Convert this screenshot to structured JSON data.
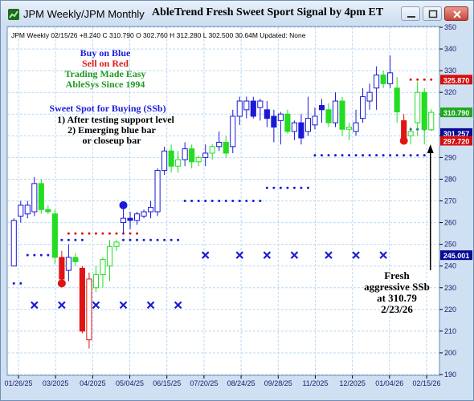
{
  "window": {
    "title": "JPM Weekly/JPM Monthly",
    "chart_title": "AbleTrend Fresh Sweet Sport Signal by 4pm ET",
    "info_line": "JPM  Weekly 02/15/26 +8.240 C 310.790 O 302.760 H 312.280 L 302.500 30.64M Updated: None",
    "icons": [
      "chart-app-icon",
      "minimize-icon",
      "maximize-icon",
      "close-icon"
    ]
  },
  "notes": {
    "buy": "Buy on Blue",
    "sell": "Sell on Red",
    "trading": "Trading Made Easy",
    "since": "AbleSys Since 1994",
    "ssb_title": "Sweet Spot for Buying (SSb)",
    "ssb_1": "1) After testing support level",
    "ssb_2": "2) Emerging blue bar",
    "ssb_3": "or closeup bar",
    "fresh": [
      "Fresh",
      "aggressive SSb",
      "at 310.79",
      "2/23/26"
    ]
  },
  "colors": {
    "blue": "#1a1ad6",
    "red": "#e01414",
    "green": "#22dd22",
    "grid": "#b9d9f2",
    "label_red_bg": "#d40f0f",
    "label_green_bg": "#1ea81e",
    "label_blue_bg": "#0a0a96"
  },
  "chart_data": {
    "type": "candlestick",
    "ylim": [
      190,
      350
    ],
    "y_ticks": [
      190,
      200,
      210,
      220,
      230,
      240,
      250,
      260,
      270,
      280,
      290,
      300,
      310,
      320,
      330,
      340,
      350
    ],
    "x_labels": [
      "01/26/25",
      "03/2025",
      "04/2025",
      "05/04/25",
      "06/15/25",
      "07/20/25",
      "08/24/25",
      "09/28/25",
      "11/2025",
      "12/2025",
      "01/04/26",
      "02/15/26"
    ],
    "grid": true,
    "candles": [
      {
        "o": 240,
        "h": 262,
        "l": 240,
        "c": 261,
        "color": "blue"
      },
      {
        "o": 263,
        "h": 270,
        "l": 260,
        "c": 268,
        "color": "blue"
      },
      {
        "o": 264,
        "h": 270,
        "l": 262,
        "c": 268,
        "color": "blue"
      },
      {
        "o": 265,
        "h": 281,
        "l": 263,
        "c": 278,
        "color": "blue"
      },
      {
        "o": 278,
        "h": 280,
        "l": 264,
        "c": 266,
        "color": "green"
      },
      {
        "o": 266,
        "h": 268,
        "l": 264,
        "c": 265,
        "color": "green"
      },
      {
        "o": 264,
        "h": 266,
        "l": 241,
        "c": 244,
        "color": "green"
      },
      {
        "o": 244,
        "h": 247,
        "l": 232,
        "c": 234,
        "color": "red"
      },
      {
        "o": 238,
        "h": 250,
        "l": 233,
        "c": 244,
        "color": "blue"
      },
      {
        "o": 244,
        "h": 246,
        "l": 240,
        "c": 242,
        "color": "green"
      },
      {
        "o": 239,
        "h": 240,
        "l": 209,
        "c": 210,
        "color": "red"
      },
      {
        "o": 206,
        "h": 237,
        "l": 202,
        "c": 234,
        "color": "red"
      },
      {
        "o": 230,
        "h": 240,
        "l": 228,
        "c": 236,
        "color": "green"
      },
      {
        "o": 236,
        "h": 244,
        "l": 230,
        "c": 243,
        "color": "green"
      },
      {
        "o": 240,
        "h": 252,
        "l": 233,
        "c": 249,
        "color": "green"
      },
      {
        "o": 249,
        "h": 252,
        "l": 247,
        "c": 251,
        "color": "green"
      },
      {
        "o": 260,
        "h": 268,
        "l": 255,
        "c": 262,
        "color": "blue"
      },
      {
        "o": 262,
        "h": 265,
        "l": 257,
        "c": 261,
        "color": "blue"
      },
      {
        "o": 261,
        "h": 265,
        "l": 259,
        "c": 264,
        "color": "blue"
      },
      {
        "o": 263,
        "h": 266,
        "l": 262,
        "c": 265,
        "color": "blue"
      },
      {
        "o": 265,
        "h": 270,
        "l": 262,
        "c": 267,
        "color": "blue"
      },
      {
        "o": 265,
        "h": 285,
        "l": 263,
        "c": 284,
        "color": "blue"
      },
      {
        "o": 284,
        "h": 295,
        "l": 282,
        "c": 293,
        "color": "blue"
      },
      {
        "o": 293,
        "h": 296,
        "l": 283,
        "c": 286,
        "color": "green"
      },
      {
        "o": 286,
        "h": 293,
        "l": 283,
        "c": 289,
        "color": "green"
      },
      {
        "o": 289,
        "h": 297,
        "l": 286,
        "c": 294,
        "color": "blue"
      },
      {
        "o": 294,
        "h": 296,
        "l": 285,
        "c": 288,
        "color": "green"
      },
      {
        "o": 288,
        "h": 291,
        "l": 286,
        "c": 290,
        "color": "green"
      },
      {
        "o": 290,
        "h": 296,
        "l": 286,
        "c": 292,
        "color": "blue"
      },
      {
        "o": 292,
        "h": 296,
        "l": 289,
        "c": 295,
        "color": "green"
      },
      {
        "o": 295,
        "h": 302,
        "l": 293,
        "c": 297,
        "color": "blue"
      },
      {
        "o": 297,
        "h": 300,
        "l": 290,
        "c": 292,
        "color": "green"
      },
      {
        "o": 295,
        "h": 312,
        "l": 292,
        "c": 309,
        "color": "blue"
      },
      {
        "o": 309,
        "h": 318,
        "l": 305,
        "c": 316,
        "color": "blue"
      },
      {
        "o": 312,
        "h": 318,
        "l": 308,
        "c": 316,
        "color": "blue"
      },
      {
        "o": 316,
        "h": 318,
        "l": 308,
        "c": 309,
        "color": "blue"
      },
      {
        "o": 313,
        "h": 317,
        "l": 307,
        "c": 316,
        "color": "blue"
      },
      {
        "o": 312,
        "h": 316,
        "l": 304,
        "c": 308,
        "color": "blue"
      },
      {
        "o": 309,
        "h": 312,
        "l": 297,
        "c": 304,
        "color": "blue"
      },
      {
        "o": 307,
        "h": 311,
        "l": 296,
        "c": 310,
        "color": "blue"
      },
      {
        "o": 310,
        "h": 312,
        "l": 301,
        "c": 302,
        "color": "green"
      },
      {
        "o": 302,
        "h": 307,
        "l": 298,
        "c": 306,
        "color": "blue"
      },
      {
        "o": 306,
        "h": 310,
        "l": 296,
        "c": 299,
        "color": "blue"
      },
      {
        "o": 302,
        "h": 318,
        "l": 300,
        "c": 308,
        "color": "blue"
      },
      {
        "o": 305,
        "h": 313,
        "l": 303,
        "c": 309,
        "color": "blue"
      },
      {
        "o": 314,
        "h": 317,
        "l": 306,
        "c": 312,
        "color": "blue"
      },
      {
        "o": 312,
        "h": 315,
        "l": 304,
        "c": 306,
        "color": "green"
      },
      {
        "o": 306,
        "h": 320,
        "l": 304,
        "c": 316,
        "color": "blue"
      },
      {
        "o": 316,
        "h": 318,
        "l": 300,
        "c": 303,
        "color": "green"
      },
      {
        "o": 303,
        "h": 306,
        "l": 298,
        "c": 304,
        "color": "green"
      },
      {
        "o": 302,
        "h": 312,
        "l": 300,
        "c": 306,
        "color": "blue"
      },
      {
        "o": 308,
        "h": 322,
        "l": 306,
        "c": 318,
        "color": "blue"
      },
      {
        "o": 316,
        "h": 324,
        "l": 312,
        "c": 320,
        "color": "blue"
      },
      {
        "o": 322,
        "h": 332,
        "l": 312,
        "c": 328,
        "color": "blue"
      },
      {
        "o": 328,
        "h": 330,
        "l": 322,
        "c": 324,
        "color": "green"
      },
      {
        "o": 324,
        "h": 337,
        "l": 322,
        "c": 329,
        "color": "blue"
      },
      {
        "o": 322,
        "h": 327,
        "l": 306,
        "c": 311,
        "color": "green"
      },
      {
        "o": 307,
        "h": 310,
        "l": 296,
        "c": 298,
        "color": "red"
      },
      {
        "o": 300,
        "h": 304,
        "l": 296,
        "c": 302,
        "color": "green"
      },
      {
        "o": 306,
        "h": 325,
        "l": 300,
        "c": 320,
        "color": "green"
      },
      {
        "o": 320,
        "h": 322,
        "l": 296,
        "c": 303,
        "color": "green"
      },
      {
        "o": 302.76,
        "h": 312.28,
        "l": 302.5,
        "c": 310.79,
        "color": "green"
      }
    ],
    "big_dots": [
      {
        "i": 7,
        "y": 232,
        "color": "red"
      },
      {
        "i": 16,
        "y": 268,
        "color": "blue"
      },
      {
        "i": 57,
        "y": 297.72,
        "color": "red"
      }
    ],
    "support_dots": [
      {
        "from": 0,
        "to": 1,
        "y": 232
      },
      {
        "from": 2,
        "to": 5,
        "y": 245
      },
      {
        "from": 6,
        "to": 10,
        "y": 252
      },
      {
        "from": 16,
        "to": 24,
        "y": 252
      },
      {
        "from": 25,
        "to": 36,
        "y": 270
      },
      {
        "from": 37,
        "to": 43,
        "y": 276
      },
      {
        "from": 44,
        "to": 60,
        "y": 291
      },
      {
        "from": 58,
        "to": 61,
        "y": 303
      }
    ],
    "resistance_dots": [
      {
        "from": 8,
        "to": 13,
        "y": 255
      },
      {
        "from": 14,
        "to": 18,
        "y": 255
      },
      {
        "from": 58,
        "to": 61,
        "y": 325.87
      }
    ],
    "x_marks_low": [
      {
        "i": 3,
        "y": 222
      },
      {
        "i": 7,
        "y": 222
      },
      {
        "i": 12,
        "y": 222
      },
      {
        "i": 16,
        "y": 222
      },
      {
        "i": 20,
        "y": 222
      },
      {
        "i": 24,
        "y": 222
      }
    ],
    "x_marks_high": [
      {
        "i": 28,
        "y": 245
      },
      {
        "i": 33,
        "y": 245
      },
      {
        "i": 37,
        "y": 245
      },
      {
        "i": 41,
        "y": 245
      },
      {
        "i": 46,
        "y": 245
      },
      {
        "i": 50,
        "y": 245
      },
      {
        "i": 54,
        "y": 245
      }
    ],
    "price_labels": [
      {
        "text": "325.870",
        "value": 325.87,
        "color": "red"
      },
      {
        "text": "310.790",
        "value": 310.79,
        "color": "green"
      },
      {
        "text": "301.257",
        "value": 301.257,
        "color": "blue"
      },
      {
        "text": "297.720",
        "value": 297.72,
        "color": "red"
      },
      {
        "text": "245.001",
        "value": 245.001,
        "color": "blue"
      }
    ]
  }
}
